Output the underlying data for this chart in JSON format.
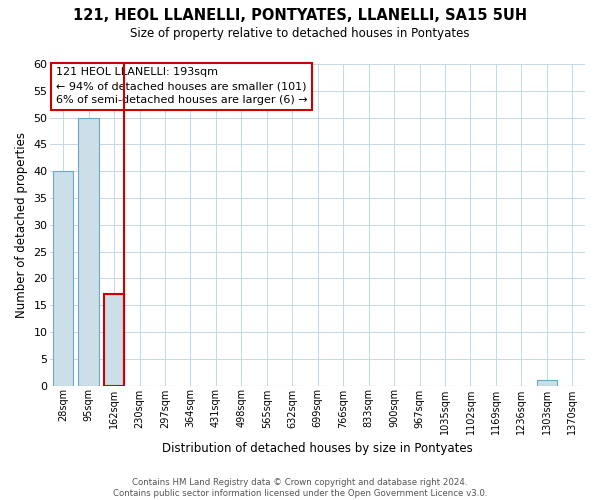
{
  "title": "121, HEOL LLANELLI, PONTYATES, LLANELLI, SA15 5UH",
  "subtitle": "Size of property relative to detached houses in Pontyates",
  "xlabel": "Distribution of detached houses by size in Pontyates",
  "ylabel": "Number of detached properties",
  "bin_labels": [
    "28sqm",
    "95sqm",
    "162sqm",
    "230sqm",
    "297sqm",
    "364sqm",
    "431sqm",
    "498sqm",
    "565sqm",
    "632sqm",
    "699sqm",
    "766sqm",
    "833sqm",
    "900sqm",
    "967sqm",
    "1035sqm",
    "1102sqm",
    "1169sqm",
    "1236sqm",
    "1303sqm",
    "1370sqm"
  ],
  "bar_heights": [
    40,
    50,
    17,
    0,
    0,
    0,
    0,
    0,
    0,
    0,
    0,
    0,
    0,
    0,
    0,
    0,
    0,
    0,
    0,
    1,
    0
  ],
  "bar_color": "#ccdee8",
  "bar_edge_color": "#6aaac8",
  "highlight_bar_index": 2,
  "highlight_line_color": "#cc0000",
  "ylim": [
    0,
    60
  ],
  "yticks": [
    0,
    5,
    10,
    15,
    20,
    25,
    30,
    35,
    40,
    45,
    50,
    55,
    60
  ],
  "annotation_title": "121 HEOL LLANELLI: 193sqm",
  "annotation_line1": "← 94% of detached houses are smaller (101)",
  "annotation_line2": "6% of semi-detached houses are larger (6) →",
  "footer_line1": "Contains HM Land Registry data © Crown copyright and database right 2024.",
  "footer_line2": "Contains public sector information licensed under the Open Government Licence v3.0.",
  "background_color": "#ffffff",
  "grid_color": "#c5d8e8"
}
